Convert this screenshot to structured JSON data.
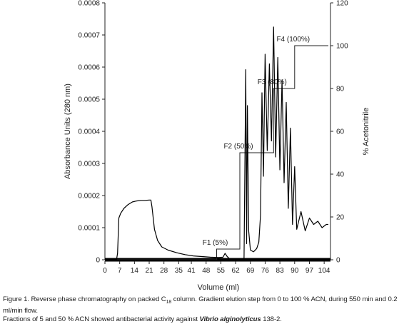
{
  "chart_data": {
    "type": "line",
    "xlabel": "Volume (ml)",
    "ylabel_left": "Absorbance Units (280 nm)",
    "ylabel_right": "% Acetonitrile",
    "xlim": [
      0,
      107
    ],
    "ylim_left": [
      0,
      0.0008
    ],
    "ylim_right": [
      0,
      120
    ],
    "x_ticks": [
      0,
      7,
      14,
      21,
      28,
      35,
      41,
      48,
      55,
      62,
      69,
      76,
      83,
      90,
      97,
      104
    ],
    "y_left_ticks": [
      "0",
      "0.0001",
      "0.0002",
      "0.0003",
      "0.0004",
      "0.0005",
      "0.0006",
      "0.0007",
      "0.0008"
    ],
    "y_right_ticks": [
      "0",
      "20",
      "40",
      "60",
      "80",
      "100",
      "120"
    ],
    "gradient_steps": [
      {
        "label": "F1 (5%)",
        "x_start": 53,
        "percent": 5
      },
      {
        "label": "F2 (50%)",
        "x_start": 64,
        "percent": 50
      },
      {
        "label": "F3 (80%)",
        "x_start": 80,
        "percent": 80
      },
      {
        "label": "F4 (100%)",
        "x_start": 90,
        "percent": 100
      }
    ],
    "gradient_end_x": 106,
    "absorbance_trace": {
      "x": [
        0,
        5.5,
        6.0,
        6.6,
        7.5,
        9,
        11,
        13,
        15,
        17,
        19,
        21,
        21.8,
        22.3,
        23.5,
        25,
        27,
        30,
        34,
        38,
        42,
        46,
        50,
        54,
        56,
        57,
        58,
        59,
        60,
        61,
        63,
        66,
        66.8,
        67.2,
        67.6,
        68.2,
        69,
        70.5,
        72,
        73,
        73.8,
        74.5,
        75.2,
        76,
        77,
        78,
        79,
        80,
        81,
        82,
        83,
        84,
        85,
        86,
        87,
        88,
        89,
        90,
        91,
        93,
        95,
        97,
        99,
        101,
        103,
        105,
        106
      ],
      "y": [
        0,
        0,
        2e-05,
        0.00013,
        0.000145,
        0.00016,
        0.000172,
        0.00018,
        0.000183,
        0.000185,
        0.000185,
        0.000186,
        0.000186,
        0.000165,
        9.5e-05,
        6e-05,
        4e-05,
        3e-05,
        2.2e-05,
        1.6e-05,
        1.2e-05,
        1e-05,
        8e-06,
        7e-06,
        8e-06,
        2e-05,
        1e-05,
        4e-06,
        2e-06,
        1e-06,
        2e-06,
        5e-06,
        0.000592,
        5e-05,
        0.00048,
        9e-05,
        3e-05,
        2.5e-05,
        3.5e-05,
        5.5e-05,
        0.00014,
        0.00052,
        0.00026,
        0.00064,
        0.00034,
        0.00061,
        0.00037,
        0.000725,
        0.00032,
        0.00063,
        0.00028,
        0.00056,
        0.00024,
        0.00049,
        0.00016,
        0.00041,
        0.00011,
        0.00029,
        9.5e-05,
        0.00015,
        9e-05,
        0.00013,
        0.00011,
        0.00012,
        0.0001,
        0.00011,
        0.00011
      ]
    }
  },
  "caption": {
    "line1_pre": "Figure 1. Reverse phase chromatography on packed C",
    "line1_sub": "18",
    "line1_post": " column. Gradient elution step from 0 to 100 % ACN, during 550 min and 0.2 ml/min flow.",
    "line2_pre": "Fractions of 5 and 50 % ACN showed antibacterial activity against ",
    "line2_species": "Vibrio alginolyticus",
    "line2_post": " 138-2."
  }
}
